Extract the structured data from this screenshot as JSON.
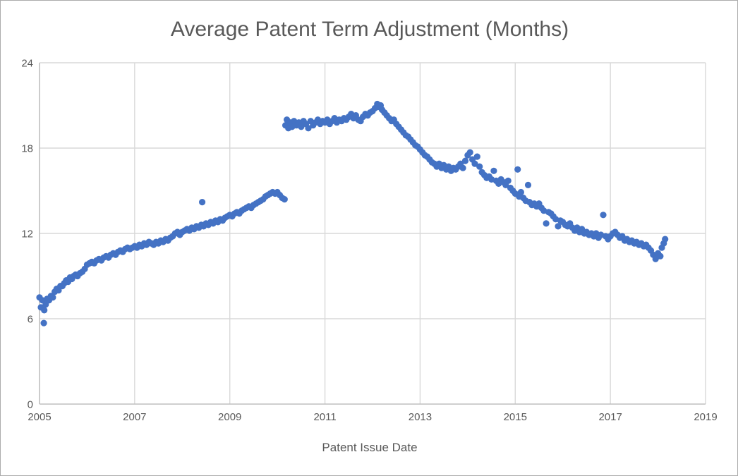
{
  "chart": {
    "title": "Average Patent Term Adjustment (Months)",
    "xlabel": "Patent Issue Date"
  },
  "chart_data": {
    "type": "scatter",
    "title": "Average Patent Term Adjustment (Months)",
    "xlabel": "Patent Issue Date",
    "ylabel": "",
    "xlim": [
      2005,
      2019
    ],
    "ylim": [
      0,
      24
    ],
    "x_ticks": [
      2005,
      2007,
      2009,
      2011,
      2013,
      2015,
      2017,
      2019
    ],
    "y_ticks": [
      0,
      6,
      12,
      18,
      24
    ],
    "grid": true,
    "legend_position": "none",
    "marker_color": "#4472C4",
    "gridline_color": "#D9D9D9",
    "axis_color": "#BFBFBF",
    "text_color": "#595959",
    "series": [
      {
        "name": "Average PTA (months)",
        "points": [
          [
            2005.0,
            7.5
          ],
          [
            2005.03,
            6.8
          ],
          [
            2005.06,
            7.3
          ],
          [
            2005.09,
            5.7
          ],
          [
            2005.1,
            6.6
          ],
          [
            2005.13,
            7.0
          ],
          [
            2005.16,
            7.4
          ],
          [
            2005.2,
            7.3
          ],
          [
            2005.24,
            7.6
          ],
          [
            2005.28,
            7.5
          ],
          [
            2005.32,
            7.9
          ],
          [
            2005.36,
            8.1
          ],
          [
            2005.4,
            8.0
          ],
          [
            2005.44,
            8.3
          ],
          [
            2005.48,
            8.3
          ],
          [
            2005.52,
            8.5
          ],
          [
            2005.56,
            8.7
          ],
          [
            2005.6,
            8.6
          ],
          [
            2005.64,
            8.9
          ],
          [
            2005.68,
            8.8
          ],
          [
            2005.72,
            9.0
          ],
          [
            2005.76,
            9.1
          ],
          [
            2005.8,
            9.0
          ],
          [
            2005.85,
            9.2
          ],
          [
            2005.9,
            9.3
          ],
          [
            2005.95,
            9.5
          ],
          [
            2006.0,
            9.8
          ],
          [
            2006.05,
            9.9
          ],
          [
            2006.1,
            10.0
          ],
          [
            2006.15,
            9.9
          ],
          [
            2006.2,
            10.1
          ],
          [
            2006.25,
            10.2
          ],
          [
            2006.3,
            10.1
          ],
          [
            2006.35,
            10.3
          ],
          [
            2006.4,
            10.4
          ],
          [
            2006.45,
            10.3
          ],
          [
            2006.5,
            10.5
          ],
          [
            2006.55,
            10.6
          ],
          [
            2006.6,
            10.5
          ],
          [
            2006.65,
            10.7
          ],
          [
            2006.7,
            10.8
          ],
          [
            2006.75,
            10.7
          ],
          [
            2006.8,
            10.9
          ],
          [
            2006.85,
            11.0
          ],
          [
            2006.9,
            10.9
          ],
          [
            2006.95,
            11.0
          ],
          [
            2007.0,
            11.1
          ],
          [
            2007.05,
            11.0
          ],
          [
            2007.1,
            11.2
          ],
          [
            2007.15,
            11.1
          ],
          [
            2007.2,
            11.3
          ],
          [
            2007.25,
            11.2
          ],
          [
            2007.3,
            11.4
          ],
          [
            2007.35,
            11.3
          ],
          [
            2007.4,
            11.2
          ],
          [
            2007.45,
            11.4
          ],
          [
            2007.5,
            11.3
          ],
          [
            2007.55,
            11.5
          ],
          [
            2007.6,
            11.4
          ],
          [
            2007.65,
            11.6
          ],
          [
            2007.7,
            11.5
          ],
          [
            2007.75,
            11.7
          ],
          [
            2007.8,
            11.8
          ],
          [
            2007.85,
            12.0
          ],
          [
            2007.9,
            12.1
          ],
          [
            2007.95,
            11.9
          ],
          [
            2008.0,
            12.1
          ],
          [
            2008.05,
            12.2
          ],
          [
            2008.1,
            12.3
          ],
          [
            2008.15,
            12.2
          ],
          [
            2008.2,
            12.4
          ],
          [
            2008.25,
            12.3
          ],
          [
            2008.3,
            12.5
          ],
          [
            2008.35,
            12.4
          ],
          [
            2008.4,
            12.6
          ],
          [
            2008.42,
            14.2
          ],
          [
            2008.45,
            12.5
          ],
          [
            2008.5,
            12.7
          ],
          [
            2008.55,
            12.6
          ],
          [
            2008.6,
            12.8
          ],
          [
            2008.65,
            12.7
          ],
          [
            2008.7,
            12.9
          ],
          [
            2008.75,
            12.8
          ],
          [
            2008.8,
            13.0
          ],
          [
            2008.85,
            12.9
          ],
          [
            2008.9,
            13.1
          ],
          [
            2008.95,
            13.2
          ],
          [
            2009.0,
            13.3
          ],
          [
            2009.05,
            13.2
          ],
          [
            2009.1,
            13.4
          ],
          [
            2009.15,
            13.5
          ],
          [
            2009.2,
            13.4
          ],
          [
            2009.25,
            13.6
          ],
          [
            2009.3,
            13.7
          ],
          [
            2009.35,
            13.8
          ],
          [
            2009.4,
            13.9
          ],
          [
            2009.45,
            13.8
          ],
          [
            2009.5,
            14.0
          ],
          [
            2009.55,
            14.1
          ],
          [
            2009.6,
            14.2
          ],
          [
            2009.65,
            14.3
          ],
          [
            2009.7,
            14.4
          ],
          [
            2009.75,
            14.6
          ],
          [
            2009.8,
            14.7
          ],
          [
            2009.85,
            14.8
          ],
          [
            2009.9,
            14.9
          ],
          [
            2009.95,
            14.8
          ],
          [
            2010.0,
            14.9
          ],
          [
            2010.05,
            14.7
          ],
          [
            2010.1,
            14.5
          ],
          [
            2010.15,
            14.4
          ],
          [
            2010.17,
            19.6
          ],
          [
            2010.2,
            20.0
          ],
          [
            2010.23,
            19.4
          ],
          [
            2010.27,
            19.8
          ],
          [
            2010.31,
            19.5
          ],
          [
            2010.35,
            19.9
          ],
          [
            2010.4,
            19.6
          ],
          [
            2010.45,
            19.8
          ],
          [
            2010.5,
            19.5
          ],
          [
            2010.55,
            19.9
          ],
          [
            2010.6,
            19.7
          ],
          [
            2010.65,
            19.4
          ],
          [
            2010.7,
            19.9
          ],
          [
            2010.75,
            19.6
          ],
          [
            2010.8,
            19.8
          ],
          [
            2010.85,
            20.0
          ],
          [
            2010.9,
            19.7
          ],
          [
            2010.95,
            19.9
          ],
          [
            2011.0,
            19.8
          ],
          [
            2011.05,
            20.0
          ],
          [
            2011.1,
            19.7
          ],
          [
            2011.15,
            19.9
          ],
          [
            2011.2,
            20.1
          ],
          [
            2011.25,
            19.8
          ],
          [
            2011.3,
            20.0
          ],
          [
            2011.35,
            19.9
          ],
          [
            2011.4,
            20.1
          ],
          [
            2011.45,
            20.0
          ],
          [
            2011.5,
            20.2
          ],
          [
            2011.55,
            20.4
          ],
          [
            2011.6,
            20.1
          ],
          [
            2011.65,
            20.3
          ],
          [
            2011.7,
            20.0
          ],
          [
            2011.75,
            19.9
          ],
          [
            2011.8,
            20.2
          ],
          [
            2011.85,
            20.4
          ],
          [
            2011.9,
            20.3
          ],
          [
            2011.95,
            20.5
          ],
          [
            2012.0,
            20.6
          ],
          [
            2012.05,
            20.8
          ],
          [
            2012.1,
            21.1
          ],
          [
            2012.13,
            20.9
          ],
          [
            2012.17,
            21.0
          ],
          [
            2012.2,
            20.7
          ],
          [
            2012.25,
            20.5
          ],
          [
            2012.3,
            20.3
          ],
          [
            2012.35,
            20.1
          ],
          [
            2012.4,
            19.9
          ],
          [
            2012.45,
            20.0
          ],
          [
            2012.5,
            19.7
          ],
          [
            2012.55,
            19.5
          ],
          [
            2012.6,
            19.3
          ],
          [
            2012.65,
            19.1
          ],
          [
            2012.7,
            18.9
          ],
          [
            2012.75,
            18.8
          ],
          [
            2012.8,
            18.6
          ],
          [
            2012.85,
            18.4
          ],
          [
            2012.9,
            18.2
          ],
          [
            2012.95,
            18.1
          ],
          [
            2013.0,
            17.9
          ],
          [
            2013.05,
            17.7
          ],
          [
            2013.1,
            17.5
          ],
          [
            2013.15,
            17.4
          ],
          [
            2013.2,
            17.2
          ],
          [
            2013.25,
            17.0
          ],
          [
            2013.3,
            16.9
          ],
          [
            2013.35,
            16.7
          ],
          [
            2013.4,
            16.9
          ],
          [
            2013.45,
            16.6
          ],
          [
            2013.5,
            16.8
          ],
          [
            2013.55,
            16.5
          ],
          [
            2013.6,
            16.7
          ],
          [
            2013.65,
            16.4
          ],
          [
            2013.7,
            16.6
          ],
          [
            2013.75,
            16.5
          ],
          [
            2013.8,
            16.7
          ],
          [
            2013.85,
            16.9
          ],
          [
            2013.9,
            16.6
          ],
          [
            2013.95,
            17.1
          ],
          [
            2014.0,
            17.5
          ],
          [
            2014.05,
            17.7
          ],
          [
            2014.1,
            17.2
          ],
          [
            2014.15,
            16.9
          ],
          [
            2014.2,
            17.4
          ],
          [
            2014.25,
            16.7
          ],
          [
            2014.3,
            16.3
          ],
          [
            2014.35,
            16.1
          ],
          [
            2014.4,
            15.9
          ],
          [
            2014.45,
            16.0
          ],
          [
            2014.5,
            15.8
          ],
          [
            2014.55,
            16.4
          ],
          [
            2014.6,
            15.7
          ],
          [
            2014.65,
            15.5
          ],
          [
            2014.7,
            15.8
          ],
          [
            2014.75,
            15.6
          ],
          [
            2014.8,
            15.4
          ],
          [
            2014.85,
            15.7
          ],
          [
            2014.9,
            15.2
          ],
          [
            2014.95,
            15.0
          ],
          [
            2015.0,
            14.8
          ],
          [
            2015.05,
            16.5
          ],
          [
            2015.08,
            14.6
          ],
          [
            2015.12,
            14.9
          ],
          [
            2015.17,
            14.5
          ],
          [
            2015.22,
            14.3
          ],
          [
            2015.27,
            15.4
          ],
          [
            2015.3,
            14.2
          ],
          [
            2015.35,
            14.0
          ],
          [
            2015.4,
            14.1
          ],
          [
            2015.45,
            13.9
          ],
          [
            2015.5,
            14.1
          ],
          [
            2015.55,
            13.8
          ],
          [
            2015.6,
            13.6
          ],
          [
            2015.65,
            12.7
          ],
          [
            2015.7,
            13.5
          ],
          [
            2015.75,
            13.4
          ],
          [
            2015.8,
            13.2
          ],
          [
            2015.85,
            13.0
          ],
          [
            2015.9,
            12.5
          ],
          [
            2015.95,
            12.9
          ],
          [
            2016.0,
            12.8
          ],
          [
            2016.05,
            12.6
          ],
          [
            2016.1,
            12.5
          ],
          [
            2016.15,
            12.7
          ],
          [
            2016.2,
            12.4
          ],
          [
            2016.25,
            12.2
          ],
          [
            2016.3,
            12.4
          ],
          [
            2016.35,
            12.1
          ],
          [
            2016.4,
            12.3
          ],
          [
            2016.45,
            12.0
          ],
          [
            2016.5,
            12.1
          ],
          [
            2016.55,
            11.9
          ],
          [
            2016.6,
            12.0
          ],
          [
            2016.65,
            11.8
          ],
          [
            2016.7,
            12.0
          ],
          [
            2016.75,
            11.7
          ],
          [
            2016.8,
            11.9
          ],
          [
            2016.85,
            13.3
          ],
          [
            2016.9,
            11.8
          ],
          [
            2016.95,
            11.6
          ],
          [
            2017.0,
            11.8
          ],
          [
            2017.05,
            12.0
          ],
          [
            2017.1,
            12.1
          ],
          [
            2017.15,
            11.9
          ],
          [
            2017.2,
            11.7
          ],
          [
            2017.25,
            11.8
          ],
          [
            2017.3,
            11.5
          ],
          [
            2017.35,
            11.6
          ],
          [
            2017.4,
            11.4
          ],
          [
            2017.45,
            11.5
          ],
          [
            2017.5,
            11.3
          ],
          [
            2017.55,
            11.4
          ],
          [
            2017.6,
            11.2
          ],
          [
            2017.65,
            11.3
          ],
          [
            2017.7,
            11.1
          ],
          [
            2017.75,
            11.2
          ],
          [
            2017.8,
            11.0
          ],
          [
            2017.85,
            10.8
          ],
          [
            2017.9,
            10.5
          ],
          [
            2017.95,
            10.2
          ],
          [
            2018.0,
            10.6
          ],
          [
            2018.05,
            10.4
          ],
          [
            2018.08,
            11.0
          ],
          [
            2018.12,
            11.3
          ],
          [
            2018.15,
            11.6
          ]
        ]
      }
    ]
  }
}
